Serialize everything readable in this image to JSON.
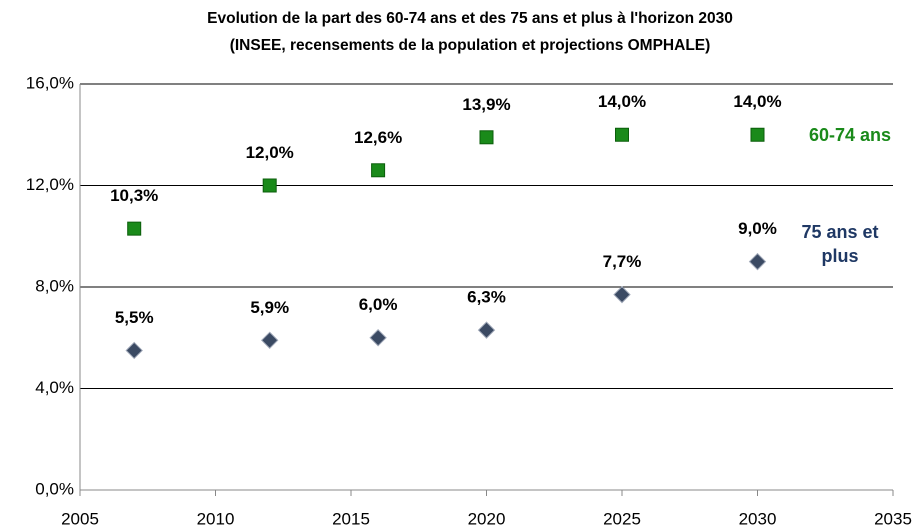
{
  "chart_data": {
    "type": "scatter",
    "title": "Evolution de la part des 60-74 ans et des 75 ans et plus à l'horizon 2030",
    "subtitle": "(INSEE, recensements de la population et projections OMPHALE)",
    "x": [
      2007,
      2012,
      2016,
      2020,
      2025,
      2030
    ],
    "series": [
      {
        "name": "60-74 ans",
        "color": "#1a8a1a",
        "marker": "square",
        "values": [
          10.3,
          12.0,
          12.6,
          13.9,
          14.0,
          14.0
        ],
        "value_labels": [
          "10,3%",
          "12,0%",
          "12,6%",
          "13,9%",
          "14,0%",
          "14,0%"
        ]
      },
      {
        "name": "75 ans et plus",
        "color": "#3b4a63",
        "marker": "diamond",
        "label_color": "#1f3864",
        "values": [
          5.5,
          5.9,
          6.0,
          6.3,
          7.7,
          9.0
        ],
        "value_labels": [
          "5,5%",
          "5,9%",
          "6,0%",
          "6,3%",
          "7,7%",
          "9,0%"
        ]
      }
    ],
    "xlim": [
      2005,
      2035
    ],
    "xticks": [
      2005,
      2010,
      2015,
      2020,
      2025,
      2030,
      2035
    ],
    "ylim": [
      0,
      16
    ],
    "yticks": [
      {
        "value": 0,
        "label": "0,0%"
      },
      {
        "value": 4,
        "label": "4,0%"
      },
      {
        "value": 8,
        "label": "8,0%"
      },
      {
        "value": 12,
        "label": "12,0%"
      },
      {
        "value": 16,
        "label": "16,0%"
      }
    ],
    "grid": true
  }
}
